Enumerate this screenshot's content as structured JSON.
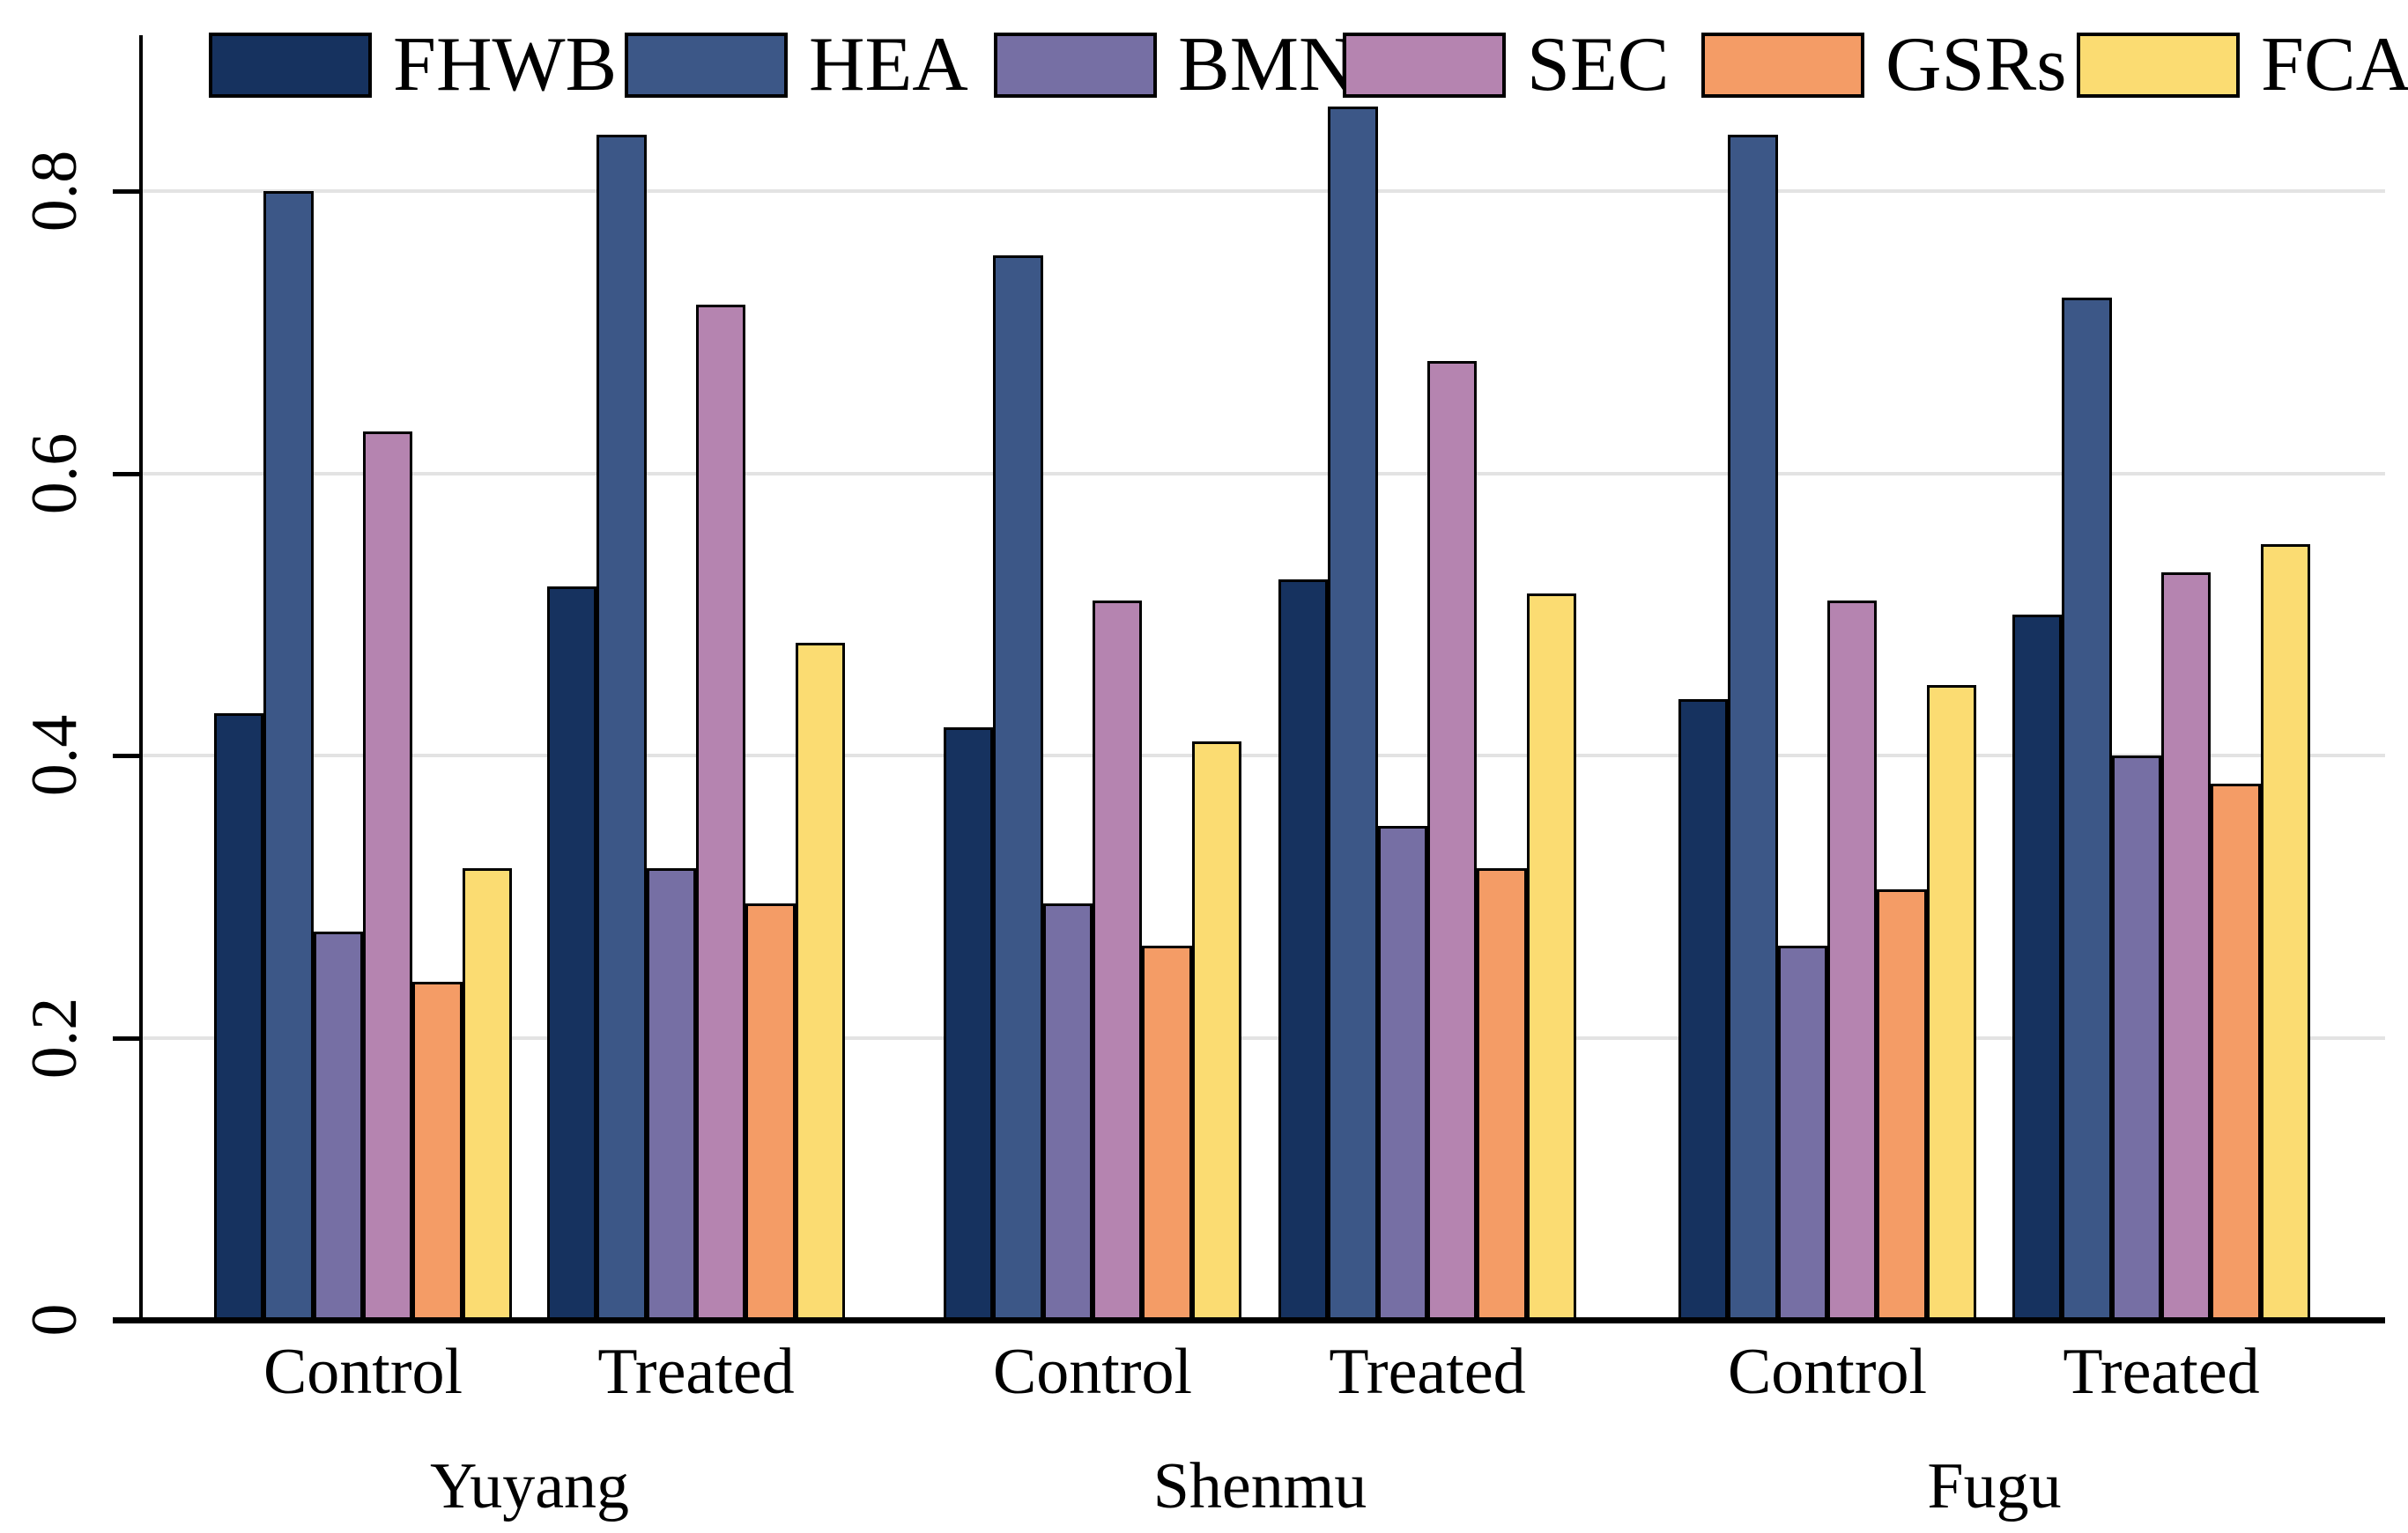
{
  "chart_data": {
    "type": "bar",
    "title": "",
    "xlabel": "",
    "ylabel": "",
    "ylim": [
      0,
      0.9
    ],
    "grid": "horizontal-light-gray",
    "legend_position": "top",
    "background": "#ffffff",
    "axis_color": "#000000",
    "gridline_color": "#e3e3e3",
    "yticks": [
      {
        "value": 0,
        "label": "0"
      },
      {
        "value": 0.2,
        "label": "0.2"
      },
      {
        "value": 0.4,
        "label": "0.4"
      },
      {
        "value": 0.6,
        "label": "0.6"
      },
      {
        "value": 0.8,
        "label": "0.8"
      }
    ],
    "regions": [
      "Yuyang",
      "Shenmu",
      "Fugu"
    ],
    "conditions": [
      "Control",
      "Treated"
    ],
    "groups": [
      "Yuyang Control",
      "Yuyang Treated",
      "Shenmu Control",
      "Shenmu Treated",
      "Fugu Control",
      "Fugu Treated"
    ],
    "series": [
      {
        "name": "FHWB",
        "color": "#16325f",
        "values": [
          0.43,
          0.52,
          0.42,
          0.525,
          0.44,
          0.5
        ]
      },
      {
        "name": "HEA",
        "color": "#3c5787",
        "values": [
          0.8,
          0.84,
          0.755,
          0.86,
          0.84,
          0.725
        ]
      },
      {
        "name": "BMN",
        "color": "#766fa4",
        "values": [
          0.275,
          0.32,
          0.295,
          0.35,
          0.265,
          0.4
        ]
      },
      {
        "name": "SEC",
        "color": "#b584b0",
        "values": [
          0.63,
          0.72,
          0.51,
          0.68,
          0.51,
          0.53
        ]
      },
      {
        "name": "GSRs",
        "color": "#f49c66",
        "values": [
          0.24,
          0.295,
          0.265,
          0.32,
          0.305,
          0.38
        ]
      },
      {
        "name": "FCA",
        "color": "#fbdc72",
        "values": [
          0.32,
          0.48,
          0.41,
          0.515,
          0.45,
          0.55
        ]
      }
    ]
  }
}
